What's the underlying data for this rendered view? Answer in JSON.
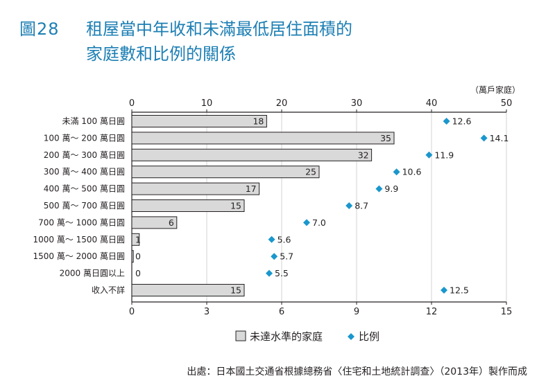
{
  "figure": {
    "number": "圖28",
    "title_lines": [
      "租屋當中年收和未滿最低居住面積的",
      "家庭數和比例的關係"
    ]
  },
  "source": "出處：日本國土交通省根據總務省〈住宅和土地統計調查〉（2013年）製作而成",
  "chart_data": {
    "type": "bar",
    "orientation": "horizontal",
    "categories": [
      "未滿 100 萬日圓",
      "100 萬～ 200 萬日圓",
      "200 萬～ 300 萬日圓",
      "300 萬～ 400 萬日圓",
      "400 萬～ 500 萬日圓",
      "500 萬～ 700 萬日圓",
      "700 萬～ 1000 萬日圓",
      "1000 萬～ 1500 萬日圓",
      "1500 萬～ 2000 萬日圓",
      "2000 萬日圓以上",
      "收入不詳"
    ],
    "series": [
      {
        "name": "未達水準的家庭",
        "type": "bar",
        "axis": "top",
        "values": [
          18,
          35,
          32,
          25,
          17,
          15,
          6,
          1,
          0.2,
          0,
          15
        ],
        "labels": [
          "18",
          "35",
          "32",
          "25",
          "17",
          "15",
          "6",
          "1",
          "0",
          "0",
          "15"
        ],
        "color": "#d9d9d9"
      },
      {
        "name": "比例",
        "type": "scatter",
        "axis": "bottom",
        "values": [
          12.6,
          14.1,
          11.9,
          10.6,
          9.9,
          8.7,
          7.0,
          5.6,
          5.7,
          5.5,
          12.5
        ],
        "labels": [
          "12.6",
          "14.1",
          "11.9",
          "10.6",
          "9.9",
          "8.7",
          "7.0",
          "5.6",
          "5.7",
          "5.5",
          "12.5"
        ],
        "color": "#1a97cc"
      }
    ],
    "top_axis": {
      "range": [
        0,
        50
      ],
      "ticks": [
        "0",
        "10",
        "20",
        "30",
        "40",
        "50"
      ],
      "unit": "（萬戶家庭）"
    },
    "bottom_axis": {
      "range": [
        0,
        15
      ],
      "ticks": [
        "0",
        "3",
        "6",
        "9",
        "12",
        "15"
      ]
    },
    "gridlines": true,
    "legend": [
      {
        "label": "未達水準的家庭",
        "shape": "square",
        "color": "#d9d9d9"
      },
      {
        "label": "比例",
        "shape": "diamond",
        "color": "#1a97cc"
      }
    ],
    "legend_position": "bottom-center"
  }
}
